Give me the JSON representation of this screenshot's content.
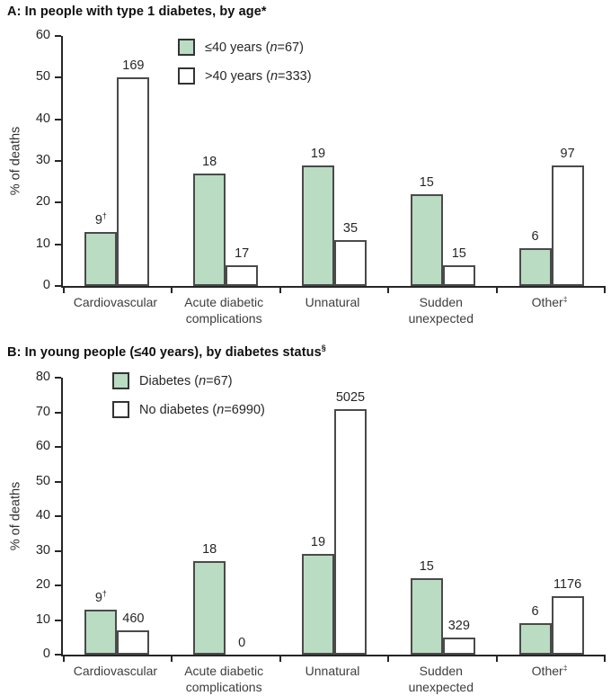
{
  "figure": {
    "background": "#ffffff"
  },
  "colors": {
    "green_fill": "#b9dcc3",
    "white_fill": "#ffffff",
    "bar_border": "#4a4a4a",
    "axis": "#262626",
    "text": "#262626"
  },
  "chart_data": [
    {
      "type": "bar",
      "title": "A: In people with type 1 diabetes, by age*",
      "ylabel": "% of deaths",
      "ylim": [
        0,
        60
      ],
      "ytick_step": 10,
      "grid": false,
      "legend_position": "top-inside-left",
      "categories": [
        "Cardiovascular",
        "Acute diabetic\ncomplications",
        "Unnatural",
        "Sudden\nunexpected",
        "Other‡"
      ],
      "series": [
        {
          "name": "≤40 years (n=67)",
          "swatch": "#b9dcc3",
          "values": [
            13,
            27,
            29,
            22,
            9
          ],
          "bar_labels": [
            "9†",
            "18",
            "19",
            "15",
            "6"
          ]
        },
        {
          "name": ">40 years (n=333)",
          "swatch": "#ffffff",
          "values": [
            50,
            5,
            11,
            5,
            29
          ],
          "bar_labels": [
            "169",
            "17",
            "35",
            "15",
            "97"
          ]
        }
      ]
    },
    {
      "type": "bar",
      "title": "B: In young people (≤40 years), by diabetes status§",
      "ylabel": "% of deaths",
      "ylim": [
        0,
        80
      ],
      "ytick_step": 10,
      "grid": false,
      "legend_position": "top-inside-left",
      "categories": [
        "Cardiovascular",
        "Acute diabetic\ncomplications",
        "Unnatural",
        "Sudden\nunexpected",
        "Other‡"
      ],
      "series": [
        {
          "name": "Diabetes (n=67)",
          "swatch": "#b9dcc3",
          "values": [
            13,
            27,
            29,
            22,
            9
          ],
          "bar_labels": [
            "9†",
            "18",
            "19",
            "15",
            "6"
          ]
        },
        {
          "name": "No diabetes (n=6990)",
          "swatch": "#ffffff",
          "values": [
            7,
            0,
            71,
            5,
            17
          ],
          "bar_labels": [
            "460",
            "0",
            "5025",
            "329",
            "1176"
          ]
        }
      ]
    }
  ]
}
